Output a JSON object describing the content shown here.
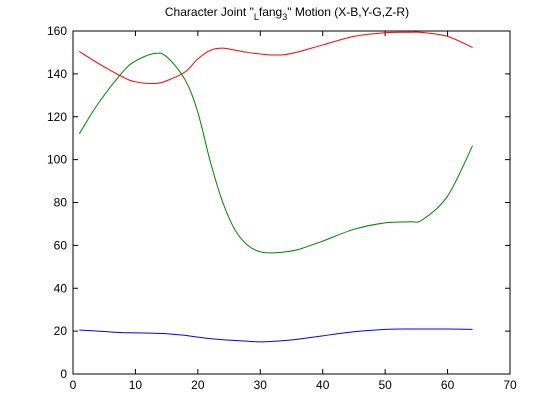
{
  "chart_data": {
    "type": "line",
    "title": {
      "prefix": "Character Joint \"",
      "sub1": "L",
      "mid": "fang",
      "sub2": "3",
      "suffix": "\" Motion (X-B,Y-G,Z-R)"
    },
    "xlabel": "",
    "ylabel": "",
    "xlim": [
      0,
      70
    ],
    "ylim": [
      0,
      160
    ],
    "xticks": [
      0,
      10,
      20,
      30,
      40,
      50,
      60,
      70
    ],
    "yticks": [
      0,
      20,
      40,
      60,
      80,
      100,
      120,
      140,
      160
    ],
    "grid": false,
    "x": [
      1,
      4,
      8,
      10,
      13,
      15,
      18,
      20,
      22,
      24,
      26,
      28,
      30,
      32,
      34,
      36,
      40,
      45,
      50,
      54,
      56,
      60,
      64
    ],
    "series": [
      {
        "color": "#0000ff",
        "values": [
          20.5,
          20,
          19.3,
          19.2,
          19,
          18.8,
          18,
          17.2,
          16.5,
          16,
          15.6,
          15.3,
          15,
          15.2,
          15.6,
          16.2,
          17.8,
          19.7,
          20.8,
          21,
          21,
          21,
          20.8
        ]
      },
      {
        "color": "#008000",
        "values": [
          112,
          126,
          141,
          146,
          149.5,
          148,
          137,
          122,
          99,
          80,
          67,
          60,
          57,
          56.5,
          57,
          58,
          62,
          67.5,
          70.5,
          71,
          72,
          83,
          106.5
        ]
      },
      {
        "color": "#ff0000",
        "values": [
          150.5,
          145,
          138.5,
          136.3,
          135.5,
          136.8,
          141,
          147,
          151,
          152,
          151,
          150,
          149.3,
          148.8,
          149,
          150.2,
          153.5,
          157.5,
          159.2,
          159.4,
          159.3,
          157.5,
          152.3
        ]
      }
    ]
  }
}
